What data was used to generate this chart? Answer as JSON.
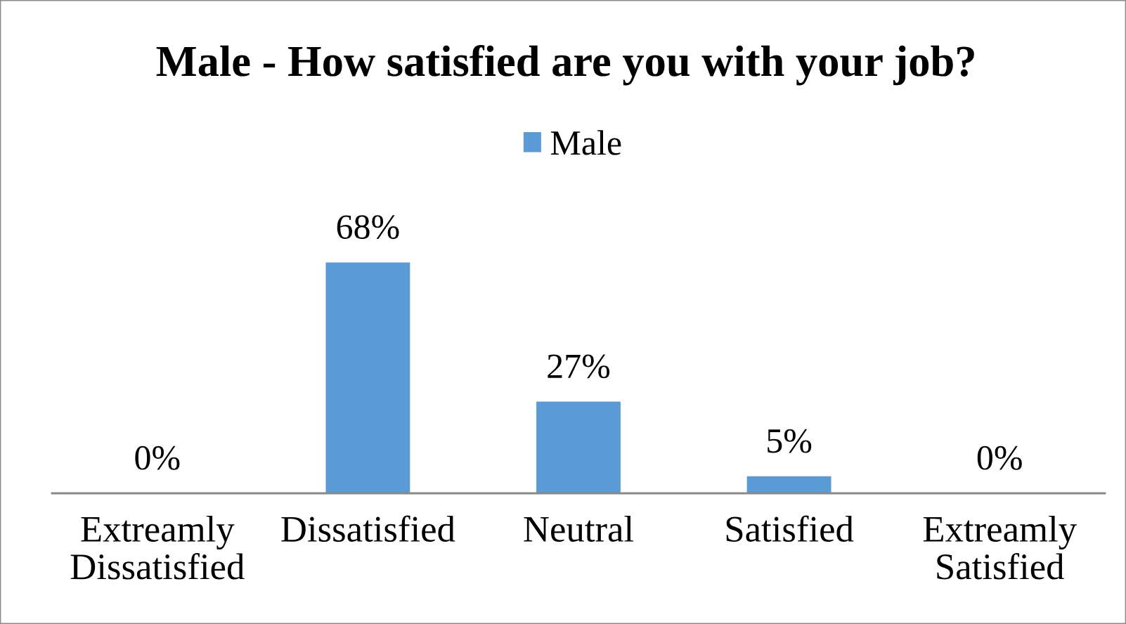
{
  "chart_data": {
    "type": "bar",
    "title": "Male - How satisfied are you with your job?",
    "categories": [
      "Extreamly Dissatisfied",
      "Dissatisfied",
      "Neutral",
      "Satisfied",
      "Extreamly Satisfied"
    ],
    "series": [
      {
        "name": "Male",
        "color": "#5b9bd5",
        "values": [
          0,
          68,
          27,
          5,
          0
        ],
        "value_labels": [
          "0%",
          "68%",
          "27%",
          "5%",
          "0%"
        ]
      }
    ],
    "legend": "top",
    "tick_labels": "x"
  }
}
